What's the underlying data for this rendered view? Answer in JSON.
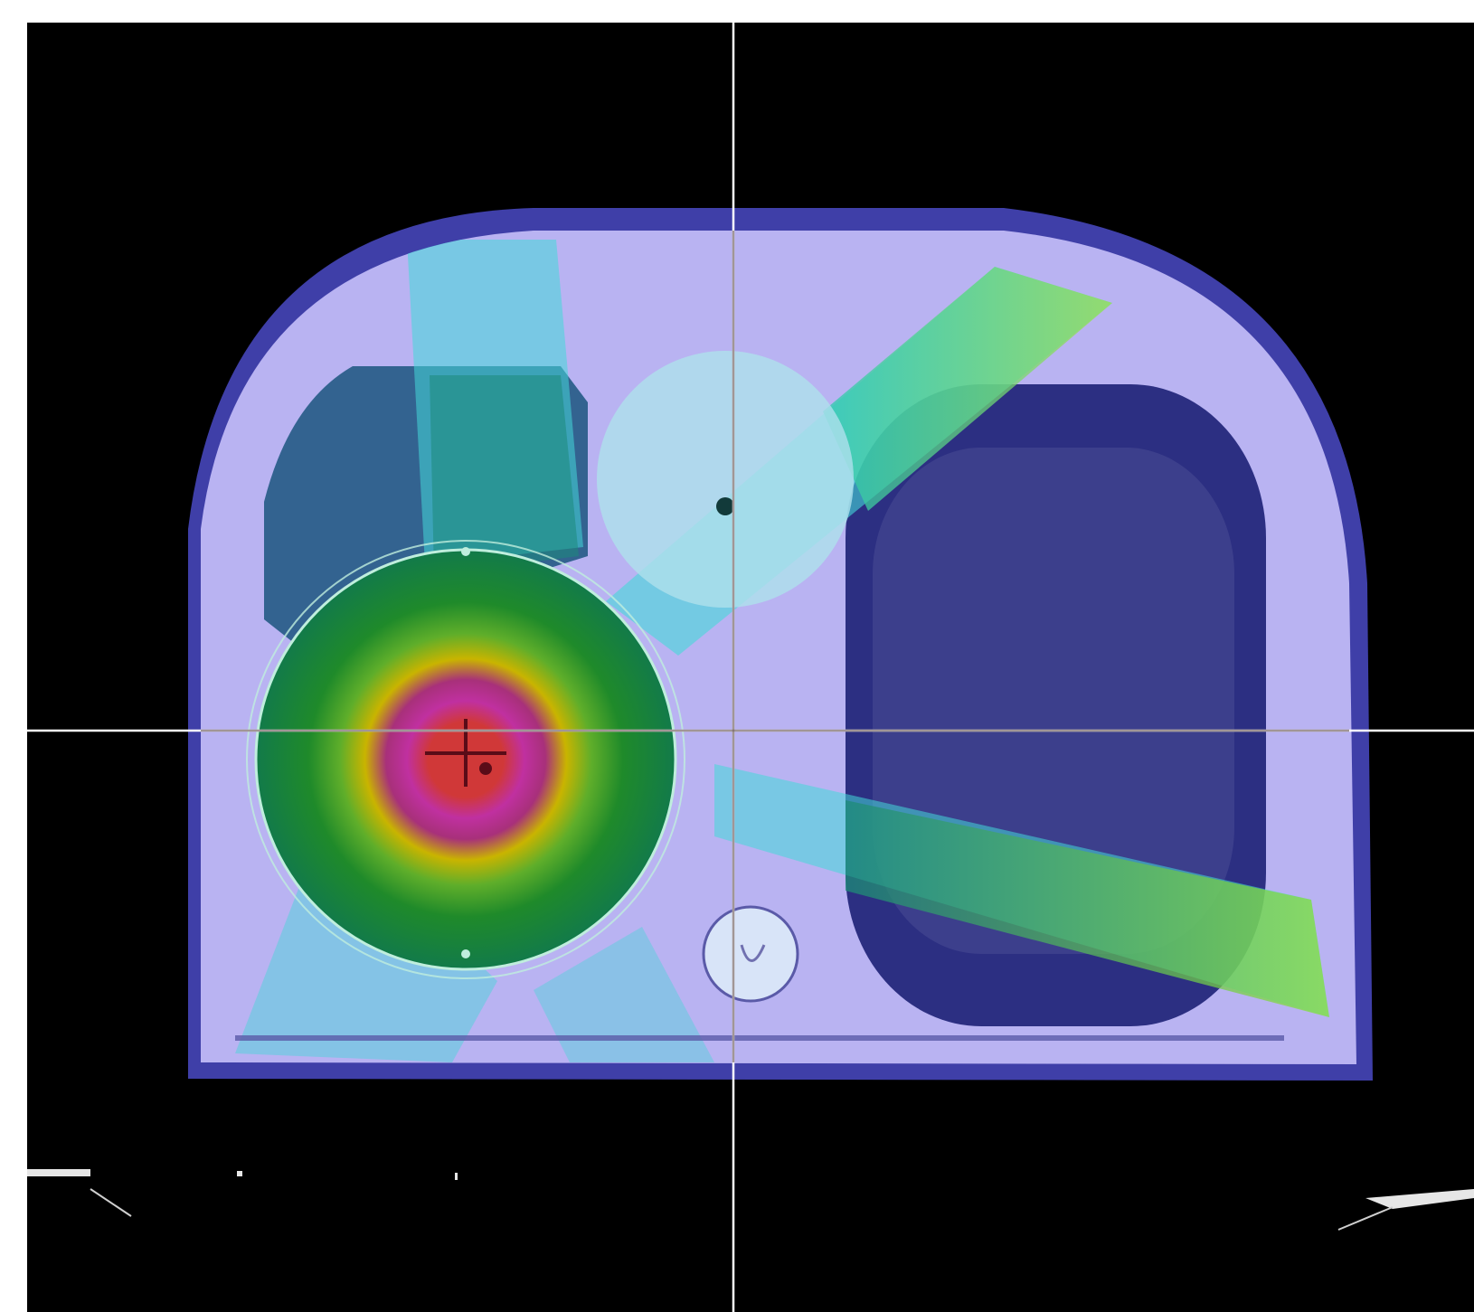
{
  "viewer": {
    "corner_top_left": "",
    "corner_top_right": ""
  },
  "colors": {
    "background": "#000000",
    "crosshair": "#ffffff",
    "phantom_edge": "#3f3fa8",
    "phantom_fill": "#b9b3f2",
    "dose_low": "#44d8d8",
    "dose_mid": "#1f9e2a",
    "dose_yellow": "#c9b400",
    "dose_magenta": "#c030a0",
    "dose_hot": "#d03838",
    "lung_cavity": "#2c2f82",
    "corner_text": "#e01010"
  },
  "isodose_levels": [
    "dose_low",
    "dose_mid",
    "dose_yellow",
    "dose_magenta",
    "dose_hot"
  ]
}
